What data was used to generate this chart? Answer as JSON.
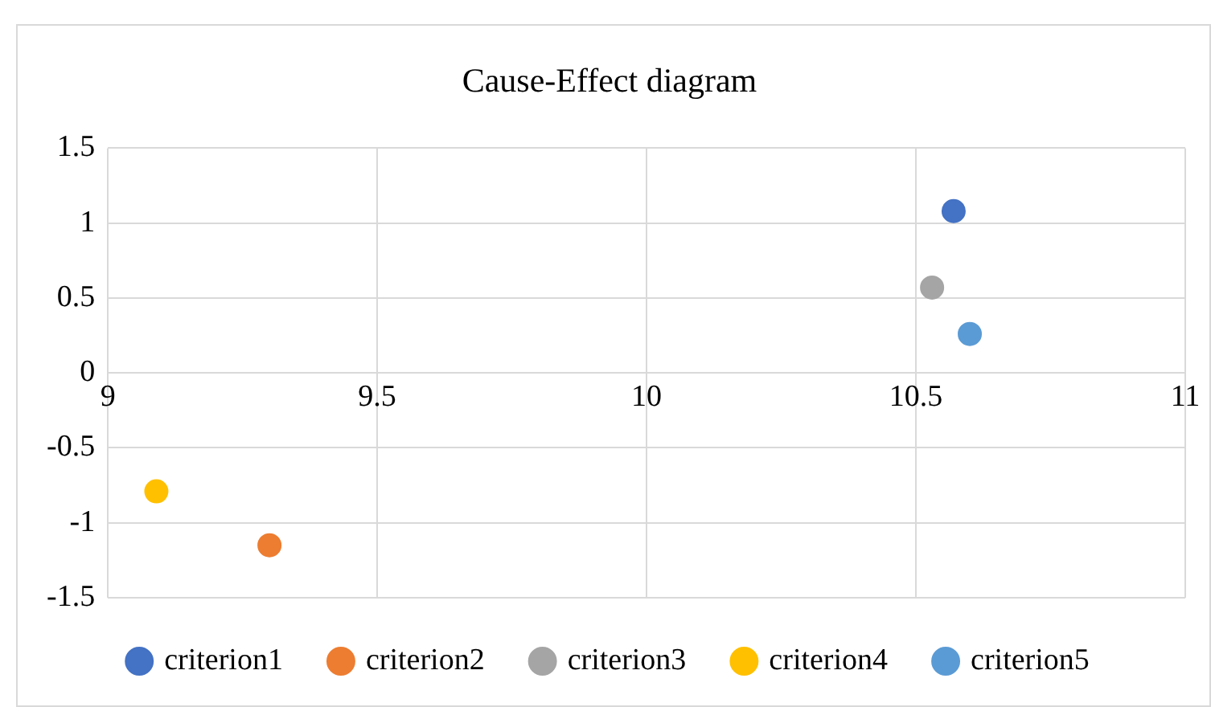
{
  "chart_data": {
    "type": "scatter",
    "title": "Cause-Effect diagram",
    "series": [
      {
        "name": "criterion1",
        "color": "#4472c4",
        "x": [
          10.57
        ],
        "values": [
          1.08
        ]
      },
      {
        "name": "criterion2",
        "color": "#ed7d31",
        "x": [
          9.3
        ],
        "values": [
          -1.15
        ]
      },
      {
        "name": "criterion3",
        "color": "#a5a5a5",
        "x": [
          10.53
        ],
        "values": [
          0.57
        ]
      },
      {
        "name": "criterion4",
        "color": "#ffc000",
        "x": [
          9.09
        ],
        "values": [
          -0.79
        ]
      },
      {
        "name": "criterion5",
        "color": "#5b9bd5",
        "x": [
          10.6
        ],
        "values": [
          0.26
        ]
      }
    ],
    "xlim": [
      9,
      11
    ],
    "xticks": [
      9,
      9.5,
      10,
      10.5,
      11
    ],
    "ylim": [
      -1.5,
      1.5
    ],
    "yticks": [
      -1.5,
      -1,
      -0.5,
      0,
      0.5,
      1,
      1.5
    ],
    "grid": true,
    "legend": "bottom",
    "marker": "circle"
  }
}
